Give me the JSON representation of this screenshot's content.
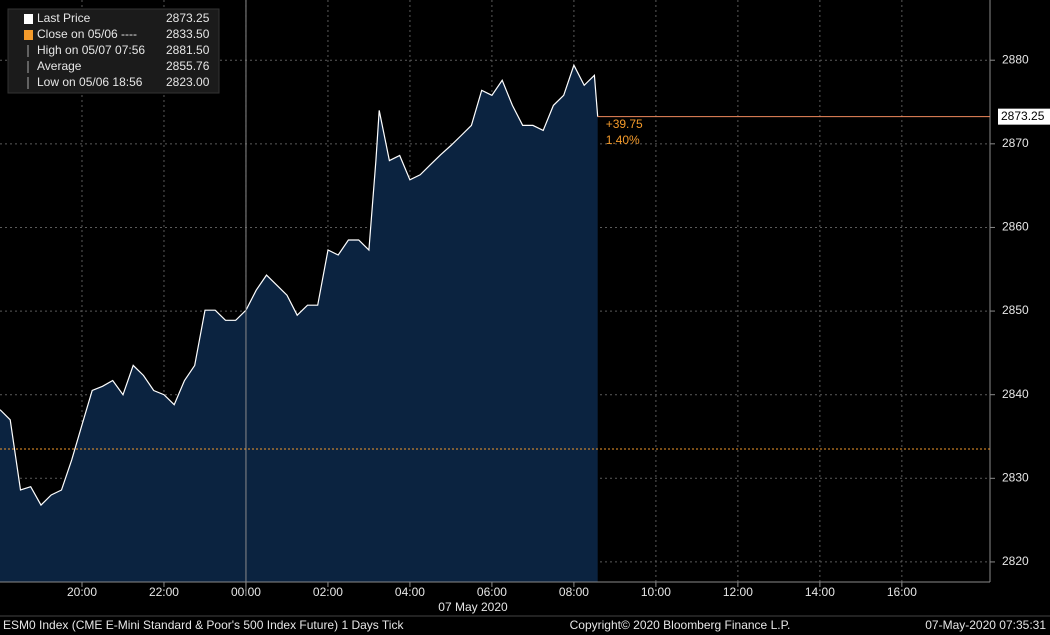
{
  "chart_data": {
    "type": "area",
    "legend": [
      {
        "name": "Last Price",
        "value": 2873.25,
        "color": "#ffffff"
      },
      {
        "name": "Close on 05/06 ----",
        "value": 2833.5,
        "value_label": "2833.50",
        "color": "#f39a2b"
      },
      {
        "name": "High on 05/07 07:56",
        "value": 2881.5,
        "value_label": "2881.50"
      },
      {
        "name": "Average",
        "value": 2855.76
      },
      {
        "name": "Low on 05/06 18:56",
        "value": 2823,
        "value_label": "2823.00"
      }
    ],
    "annotations": [
      {
        "value": 39.75,
        "label": "+39.75"
      },
      {
        "value": 1.4,
        "label": "1.40%"
      }
    ],
    "x": [
      18,
      18.25,
      18.5,
      18.75,
      19,
      19.25,
      19.5,
      19.75,
      20,
      20.25,
      20.5,
      20.75,
      21,
      21.25,
      21.5,
      21.75,
      22,
      22.25,
      22.5,
      22.75,
      23,
      23.25,
      23.5,
      23.75,
      24,
      24.25,
      24.5,
      24.75,
      25,
      25.25,
      25.5,
      25.75,
      26,
      26.25,
      26.5,
      26.75,
      27,
      27.17,
      27.25,
      27.5,
      27.75,
      28,
      28.25,
      28.5,
      28.75,
      29,
      29.25,
      29.5,
      29.75,
      30,
      30.25,
      30.5,
      30.75,
      31,
      31.25,
      31.5,
      31.75,
      32,
      32.25,
      32.5,
      32.58
    ],
    "series": [
      {
        "name": "Last Price",
        "color": "#ffffff",
        "fill": "#0b2340",
        "values": [
          2838.2,
          2837,
          2828.6,
          2829,
          2826.8,
          2828,
          2828.6,
          2832.2,
          2836.4,
          2840.5,
          2841,
          2841.7,
          2840,
          2843.5,
          2842.3,
          2840.5,
          2840,
          2838.8,
          2841.7,
          2843.5,
          2850.1,
          2850.1,
          2848.9,
          2848.9,
          2850.1,
          2852.5,
          2854.3,
          2853.1,
          2851.9,
          2849.5,
          2850.7,
          2850.7,
          2857.3,
          2856.7,
          2858.5,
          2858.5,
          2857.3,
          2868,
          2874,
          2868,
          2868.6,
          2865.7,
          2866.3,
          2867.5,
          2868.7,
          2869.8,
          2871,
          2872.2,
          2876.4,
          2875.8,
          2877.6,
          2874.6,
          2872.2,
          2872.2,
          2871.6,
          2874.6,
          2875.8,
          2879.4,
          2877,
          2878.2,
          2873.25
        ]
      }
    ],
    "xlim": [
      18,
      42.15
    ],
    "xticks": [
      {
        "value": 20,
        "label": "20:00"
      },
      {
        "value": 22,
        "label": "22:00"
      },
      {
        "value": 24,
        "label": "00:00"
      },
      {
        "value": 26,
        "label": "02:00"
      },
      {
        "value": 28,
        "label": "04:00"
      },
      {
        "value": 30,
        "label": "06:00"
      },
      {
        "value": 32,
        "label": "08:00"
      },
      {
        "value": 34,
        "label": "10:00"
      },
      {
        "value": 36,
        "label": "12:00"
      },
      {
        "value": 38,
        "label": "14:00"
      },
      {
        "value": 40,
        "label": "16:00"
      }
    ],
    "day_break": 24,
    "ylim": [
      2817.6,
      2887.2
    ],
    "yticks": [
      2820,
      2830,
      2840,
      2850,
      2860,
      2870,
      2880
    ],
    "grid": true,
    "date_label": "07 May 2020",
    "footer_left": "ESM0 Index (CME E-Mini Standard & Poor's 500 Index Future) 1 Days  Tick",
    "footer_center": "Copyright© 2020 Bloomberg Finance L.P.",
    "footer_right": "07-May-2020 07:35:31"
  }
}
